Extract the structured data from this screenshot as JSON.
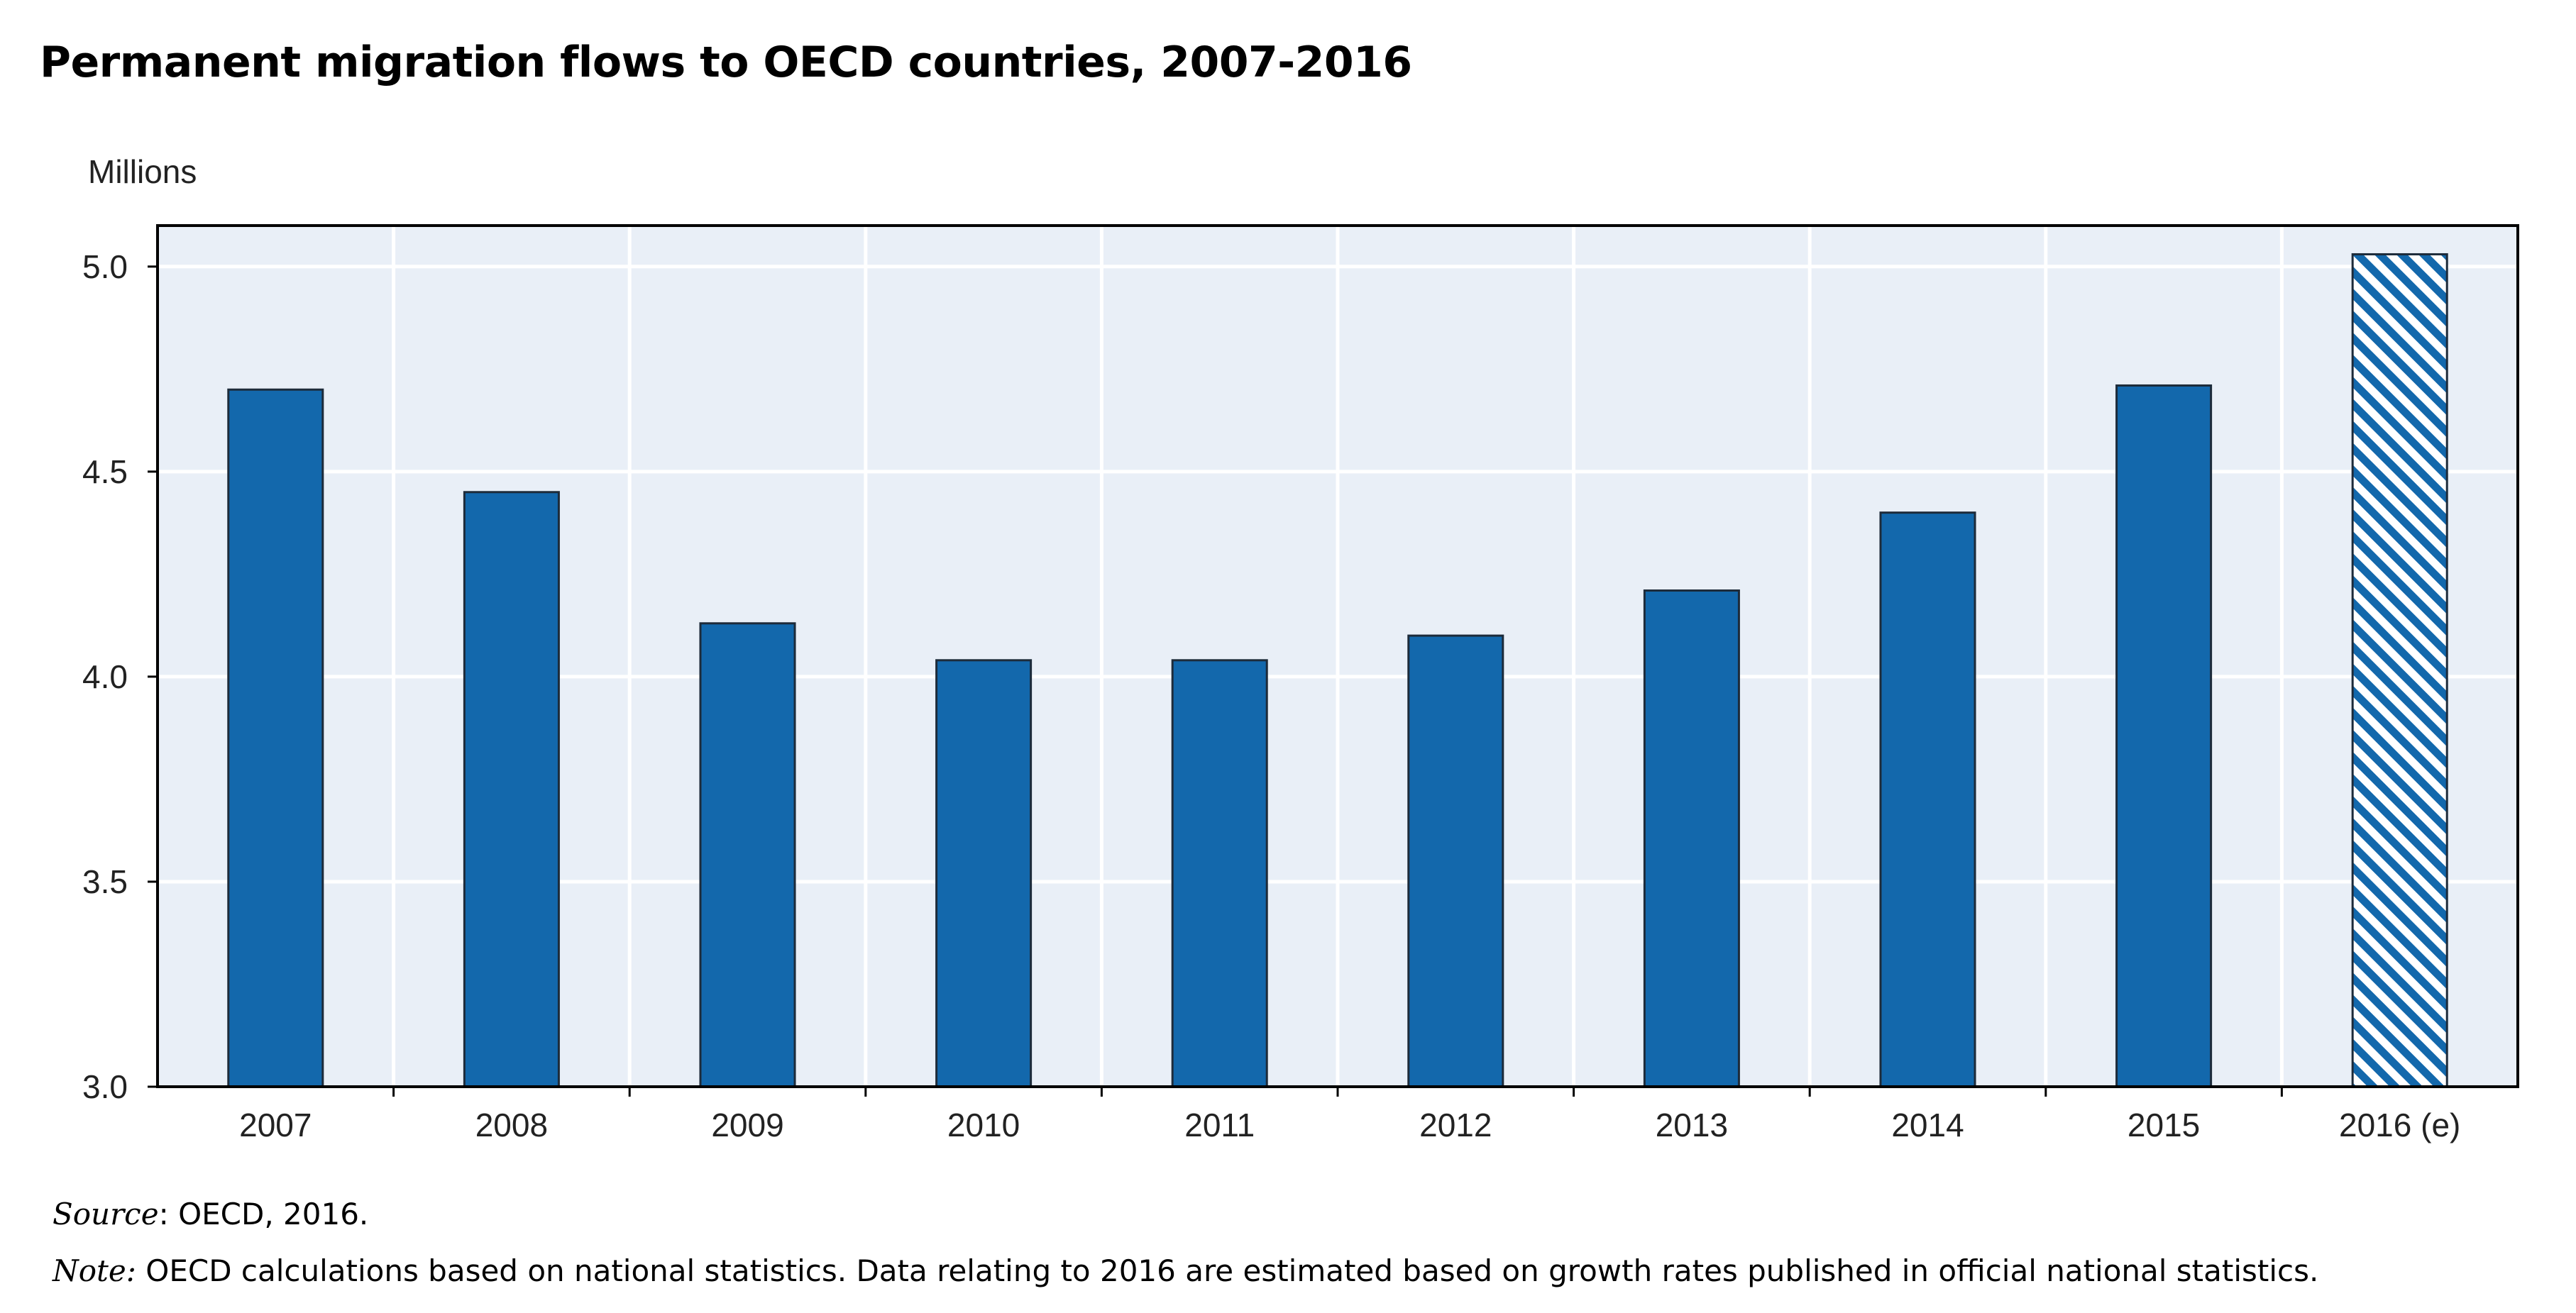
{
  "title": "Permanent migration flows to OECD countries, 2007-2016",
  "chart_data": {
    "type": "bar",
    "unit_label": "Millions",
    "categories": [
      "2007",
      "2008",
      "2009",
      "2010",
      "2011",
      "2012",
      "2013",
      "2014",
      "2015",
      "2016 (e)"
    ],
    "values": [
      4.7,
      4.45,
      4.13,
      4.04,
      4.04,
      4.1,
      4.21,
      4.4,
      4.71,
      5.03
    ],
    "estimated": [
      false,
      false,
      false,
      false,
      false,
      false,
      false,
      false,
      false,
      true
    ],
    "ylim": [
      3.0,
      5.1
    ],
    "yticks": [
      "3.0",
      "3.5",
      "4.0",
      "4.5",
      "5.0"
    ],
    "grid": true,
    "colors": {
      "bar": "#1368ac",
      "bar_edge": "#1d2b3a",
      "plot_bg": "#e9eff7",
      "grid": "#ffffff",
      "hatch_bg": "#ffffff"
    }
  },
  "footnotes": {
    "source_label": "Source",
    "source_text": ": OECD, 2016.",
    "note_label": "Note:",
    "note_text": " OECD calculations based on national statistics. Data relating to 2016 are estimated based on growth rates published in official national statistics."
  }
}
